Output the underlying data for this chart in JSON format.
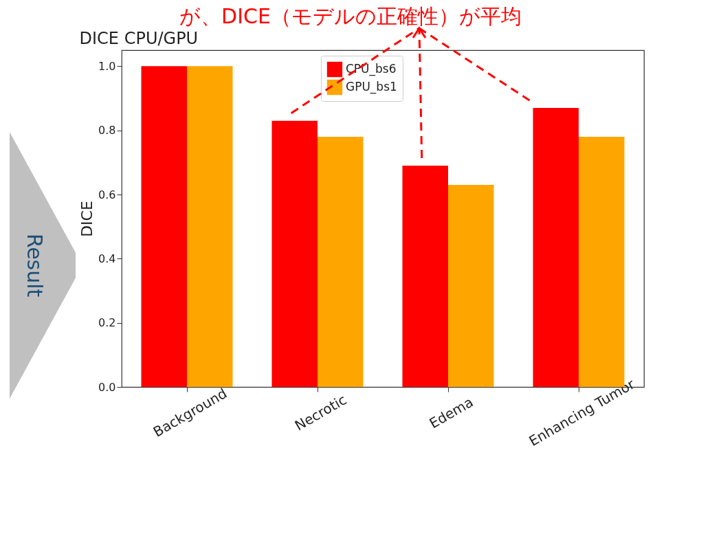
{
  "chart_data": {
    "type": "bar",
    "title": "DICE CPU/GPU",
    "ylabel": "DICE",
    "categories": [
      "Background",
      "Necrotic",
      "Edema",
      "Enhancing Tumor"
    ],
    "series": [
      {
        "name": "CPU_bs6",
        "color": "#ff0000",
        "values": [
          1.0,
          0.83,
          0.69,
          0.87
        ]
      },
      {
        "name": "GPU_bs1",
        "color": "#ffa500",
        "values": [
          1.0,
          0.78,
          0.63,
          0.78
        ]
      }
    ],
    "ylim": [
      0,
      1.05
    ],
    "yticks": [
      {
        "value": 0,
        "label": "0.0"
      },
      {
        "value": 0.2,
        "label": "0.2"
      },
      {
        "value": 0.4,
        "label": "0.4"
      },
      {
        "value": 0.6,
        "label": "0.6"
      },
      {
        "value": 0.8,
        "label": "0.8"
      },
      {
        "value": 1,
        "label": "1.0"
      }
    ],
    "legend": "top",
    "annotations": [
      "が、DICE（モデルの正確性）が平均",
      "Result"
    ]
  }
}
